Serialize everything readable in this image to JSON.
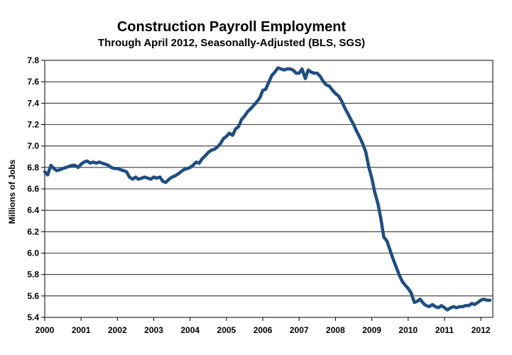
{
  "chart_data": {
    "type": "line",
    "title": "Construction Payroll Employment",
    "subtitle": "Through April 2012, Seasonally-Adjusted (BLS, SGS)",
    "xlabel": "",
    "ylabel": "Millions of Jobs",
    "xlim": [
      2000,
      2012.33
    ],
    "ylim": [
      5.4,
      7.8
    ],
    "x_ticks": [
      "2000",
      "2001",
      "2002",
      "2003",
      "2004",
      "2005",
      "2006",
      "2007",
      "2008",
      "2009",
      "2010",
      "2011",
      "2012"
    ],
    "y_ticks": [
      "7.8",
      "7.6",
      "7.4",
      "7.2",
      "7.0",
      "6.8",
      "6.6",
      "6.4",
      "6.2",
      "6.0",
      "5.8",
      "5.6",
      "5.4"
    ],
    "grid": true,
    "line_color": "#1f4e80",
    "series": [
      {
        "x": [
          2000.0,
          2000.08,
          2000.17,
          2000.25,
          2000.33,
          2000.42,
          2000.5,
          2000.58,
          2000.67,
          2000.75,
          2000.83,
          2000.92,
          2001.0,
          2001.08,
          2001.17,
          2001.25,
          2001.33,
          2001.42,
          2001.5,
          2001.58,
          2001.67,
          2001.75,
          2001.83,
          2001.92,
          2002.0,
          2002.08,
          2002.17,
          2002.25,
          2002.33,
          2002.42,
          2002.5,
          2002.58,
          2002.67,
          2002.75,
          2002.83,
          2002.92,
          2003.0,
          2003.08,
          2003.17,
          2003.25,
          2003.33,
          2003.42,
          2003.5,
          2003.58,
          2003.67,
          2003.75,
          2003.83,
          2003.92,
          2004.0,
          2004.08,
          2004.17,
          2004.25,
          2004.33,
          2004.42,
          2004.5,
          2004.58,
          2004.67,
          2004.75,
          2004.83,
          2004.92,
          2005.0,
          2005.08,
          2005.17,
          2005.25,
          2005.33,
          2005.42,
          2005.5,
          2005.58,
          2005.67,
          2005.75,
          2005.83,
          2005.92,
          2006.0,
          2006.08,
          2006.17,
          2006.25,
          2006.33,
          2006.42,
          2006.5,
          2006.58,
          2006.67,
          2006.75,
          2006.83,
          2006.92,
          2007.0,
          2007.08,
          2007.17,
          2007.25,
          2007.33,
          2007.42,
          2007.5,
          2007.58,
          2007.67,
          2007.75,
          2007.83,
          2007.92,
          2008.0,
          2008.08,
          2008.17,
          2008.25,
          2008.33,
          2008.42,
          2008.5,
          2008.58,
          2008.67,
          2008.75,
          2008.83,
          2008.92,
          2009.0,
          2009.08,
          2009.17,
          2009.25,
          2009.33,
          2009.42,
          2009.5,
          2009.58,
          2009.67,
          2009.75,
          2009.83,
          2009.92,
          2010.0,
          2010.08,
          2010.17,
          2010.25,
          2010.33,
          2010.42,
          2010.5,
          2010.58,
          2010.67,
          2010.75,
          2010.83,
          2010.92,
          2011.0,
          2011.08,
          2011.17,
          2011.25,
          2011.33,
          2011.42,
          2011.5,
          2011.58,
          2011.67,
          2011.75,
          2011.83,
          2011.92,
          2012.0,
          2012.08,
          2012.17,
          2012.25
        ],
        "values": [
          6.76,
          6.73,
          6.82,
          6.79,
          6.77,
          6.78,
          6.79,
          6.8,
          6.81,
          6.82,
          6.82,
          6.8,
          6.83,
          6.85,
          6.86,
          6.84,
          6.85,
          6.84,
          6.85,
          6.84,
          6.83,
          6.82,
          6.8,
          6.79,
          6.79,
          6.78,
          6.77,
          6.76,
          6.71,
          6.69,
          6.71,
          6.69,
          6.7,
          6.71,
          6.7,
          6.69,
          6.71,
          6.7,
          6.71,
          6.67,
          6.66,
          6.69,
          6.71,
          6.72,
          6.74,
          6.76,
          6.78,
          6.79,
          6.8,
          6.82,
          6.85,
          6.84,
          6.88,
          6.91,
          6.94,
          6.96,
          6.97,
          6.99,
          7.02,
          7.07,
          7.09,
          7.12,
          7.1,
          7.16,
          7.18,
          7.25,
          7.28,
          7.32,
          7.35,
          7.38,
          7.41,
          7.45,
          7.52,
          7.53,
          7.6,
          7.66,
          7.69,
          7.73,
          7.72,
          7.71,
          7.72,
          7.72,
          7.71,
          7.68,
          7.68,
          7.72,
          7.63,
          7.71,
          7.69,
          7.68,
          7.68,
          7.65,
          7.6,
          7.57,
          7.56,
          7.52,
          7.49,
          7.47,
          7.42,
          7.36,
          7.31,
          7.25,
          7.2,
          7.14,
          7.08,
          7.02,
          6.95,
          6.8,
          6.7,
          6.57,
          6.46,
          6.32,
          6.15,
          6.11,
          6.03,
          5.95,
          5.87,
          5.8,
          5.74,
          5.7,
          5.67,
          5.63,
          5.54,
          5.55,
          5.57,
          5.53,
          5.51,
          5.5,
          5.52,
          5.5,
          5.49,
          5.51,
          5.49,
          5.47,
          5.49,
          5.5,
          5.49,
          5.5,
          5.5,
          5.51,
          5.51,
          5.53,
          5.52,
          5.54,
          5.56,
          5.57,
          5.56,
          5.56
        ]
      }
    ]
  }
}
